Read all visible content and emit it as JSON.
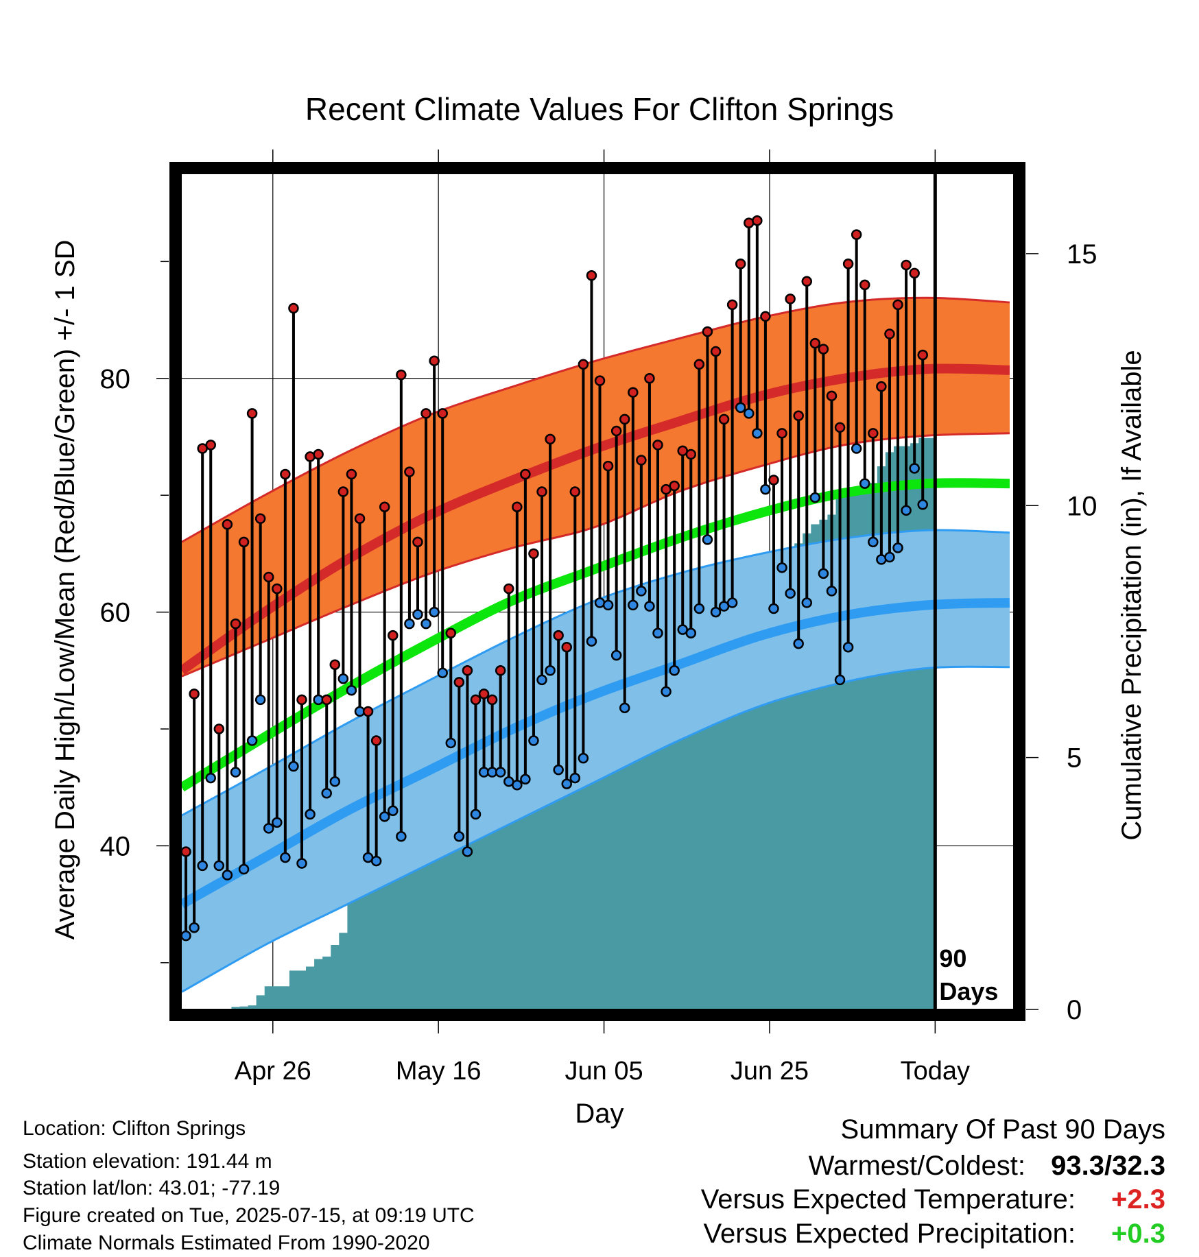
{
  "chart_data": {
    "type": "line",
    "title": "Recent Climate Values For Clifton Springs",
    "xlabel": "Day",
    "ylabel": "Average Daily High/Low/Mean (Red/Blue/Green) +/- 1 SD",
    "y2label": "Cumulative Precipitation (in), If Available",
    "x_ticks": [
      {
        "day": 11,
        "label": "Apr 26"
      },
      {
        "day": 31,
        "label": "May 16"
      },
      {
        "day": 51,
        "label": "Jun 05"
      },
      {
        "day": 71,
        "label": "Jun 25"
      },
      {
        "day": 91,
        "label": "Today"
      }
    ],
    "xlim": [
      0,
      100.5
    ],
    "ylim": [
      26,
      98
    ],
    "y_ticks": [
      40,
      60,
      80
    ],
    "y_minor_ticks": [
      30,
      50,
      70,
      90
    ],
    "y2lim": [
      0,
      16.7
    ],
    "y2_ticks": [
      0,
      5,
      10,
      15
    ],
    "today_marker": {
      "day": 91,
      "label_line1": "90",
      "label_line2": "Days"
    },
    "normals": {
      "day": [
        0,
        10,
        20,
        30,
        40,
        50,
        60,
        70,
        80,
        90,
        100
      ],
      "high_mean": [
        55,
        60,
        64.5,
        68.3,
        71.3,
        74,
        76.3,
        78.5,
        80,
        80.8,
        80.7
      ],
      "high_upper": [
        66,
        70,
        73.7,
        76.9,
        79.3,
        81.5,
        83.4,
        85.2,
        86.5,
        86.9,
        86.5
      ],
      "high_lower": [
        54.5,
        57.5,
        60.5,
        63.3,
        65.5,
        67.3,
        70.3,
        72.5,
        74.3,
        75.1,
        75.3
      ],
      "mean": [
        45,
        49.3,
        53.5,
        57.4,
        61,
        63.7,
        66.3,
        68.5,
        70.2,
        71,
        71
      ],
      "low_mean": [
        35,
        39,
        43,
        46.5,
        50,
        53,
        55.5,
        58,
        59.7,
        60.6,
        60.8
      ],
      "low_upper": [
        42.6,
        46.5,
        50.5,
        54.2,
        57.8,
        61,
        63.3,
        65,
        66.3,
        67,
        66.8
      ],
      "low_lower": [
        27.5,
        31.5,
        35,
        38.5,
        42,
        45.5,
        49,
        52,
        54,
        55.2,
        55.3
      ]
    },
    "series": [
      {
        "name": "Red",
        "label": "Daily High",
        "values": [
          39.5,
          53,
          74,
          74.3,
          50,
          67.5,
          59,
          66,
          77,
          68,
          63,
          62,
          71.8,
          86,
          52.5,
          73.3,
          73.5,
          52.5,
          55.5,
          70.3,
          71.8,
          68,
          51.5,
          49,
          69,
          58,
          80.3,
          72,
          66,
          77,
          81.5,
          77,
          58.2,
          54,
          55,
          52.5,
          53,
          52.5,
          55,
          62,
          69,
          71.8,
          65,
          70.3,
          74.8,
          58,
          57,
          70.3,
          81.2,
          88.8,
          79.8,
          72.5,
          75.5,
          76.5,
          78.8,
          73,
          80,
          74.3,
          70.5,
          70.8,
          73.8,
          73.5,
          81.2,
          84,
          82.3,
          76.5,
          86.3,
          89.8,
          93.3,
          93.5,
          85.3,
          71.3,
          75.3,
          86.8,
          76.8,
          88.3,
          83,
          82.5,
          78.5,
          75.8,
          89.8,
          92.3,
          88,
          75.3,
          79.3,
          83.8,
          86.3,
          89.7,
          89,
          82
        ]
      },
      {
        "name": "Blue",
        "label": "Daily Low",
        "values": [
          32.3,
          33,
          38.3,
          45.8,
          38.3,
          37.5,
          46.3,
          38,
          49,
          52.5,
          41.5,
          42,
          39,
          46.8,
          38.5,
          42.7,
          52.5,
          44.5,
          45.5,
          54.3,
          53.3,
          51.5,
          39,
          38.7,
          42.5,
          43,
          40.8,
          59,
          59.8,
          59,
          60,
          54.8,
          48.8,
          40.8,
          39.5,
          42.7,
          46.3,
          46.3,
          46.3,
          45.5,
          45.2,
          45.7,
          49,
          54.2,
          55,
          46.5,
          45.3,
          45.8,
          47.5,
          57.5,
          60.8,
          60.6,
          56.3,
          51.8,
          60.6,
          61.8,
          60.5,
          58.2,
          53.2,
          55,
          58.5,
          58.2,
          60.3,
          66.2,
          60,
          60.5,
          60.8,
          77.5,
          77,
          75.3,
          70.5,
          60.3,
          63.8,
          61.6,
          57.3,
          60.8,
          69.8,
          63.3,
          61.8,
          54.2,
          57,
          74,
          71,
          66,
          64.5,
          64.7,
          65.5,
          68.7,
          72.3,
          69.2
        ]
      },
      {
        "name": "Precipitation",
        "label": "Cumulative Precipitation",
        "values": [
          0,
          0,
          0,
          0,
          0,
          0,
          0.05,
          0.06,
          0.08,
          0.28,
          0.46,
          0.46,
          0.46,
          0.77,
          0.77,
          0.85,
          1.0,
          1.05,
          1.28,
          1.52,
          2.18,
          2.99,
          3.38,
          3.38,
          3.38,
          3.38,
          3.38,
          3.38,
          3.38,
          3.38,
          3.38,
          3.52,
          3.52,
          3.52,
          3.59,
          3.59,
          3.59,
          3.59,
          4.03,
          4.19,
          4.34,
          4.48,
          4.52,
          4.52,
          5.02,
          5.05,
          5.16,
          5.37,
          5.47,
          5.6,
          5.62,
          5.62,
          5.8,
          5.92,
          6.0,
          6.0,
          6.5,
          6.66,
          6.82,
          6.97,
          7.02,
          7.02,
          7.2,
          7.48,
          7.95,
          8.16,
          8.32,
          8.44,
          8.44,
          8.44,
          8.47,
          8.64,
          8.81,
          8.81,
          9.25,
          9.45,
          9.63,
          9.72,
          9.82,
          10.16,
          10.25,
          10.29,
          10.3,
          10.45,
          10.78,
          11.06,
          11.18,
          11.18,
          11.24,
          11.34,
          11.34
        ]
      }
    ],
    "grid": true,
    "colors": {
      "high_band": "#f4782f",
      "high_band_edge": "#d42a2a",
      "high_mean": "#d42a2a",
      "low_band": "#80c0e8",
      "low_band_edge": "#2f9cf2",
      "low_mean": "#2f9cf2",
      "mean": "#0ce60c",
      "precip": "#4a9aa3",
      "high_marker": "#d02020",
      "low_marker": "#2f86e0",
      "frame": "#000000"
    }
  },
  "footer_left": [
    "Location: Clifton Springs",
    "Station elevation: 191.44 m",
    "Station lat/lon: 43.01; -77.19",
    "Figure created on Tue, 2025-07-15, at 09:19 UTC",
    "Climate Normals Estimated From 1990-2020"
  ],
  "summary": {
    "heading": "Summary Of Past 90 Days",
    "warm_cold_label": "Warmest/Coldest:",
    "warm_cold_value": "93.3/32.3",
    "temp_label": "Versus Expected Temperature:",
    "temp_value": "+2.3",
    "temp_color": "#dd2222",
    "precip_label": "Versus Expected Precipitation:",
    "precip_value": "+0.3",
    "precip_color": "#22cc22"
  }
}
